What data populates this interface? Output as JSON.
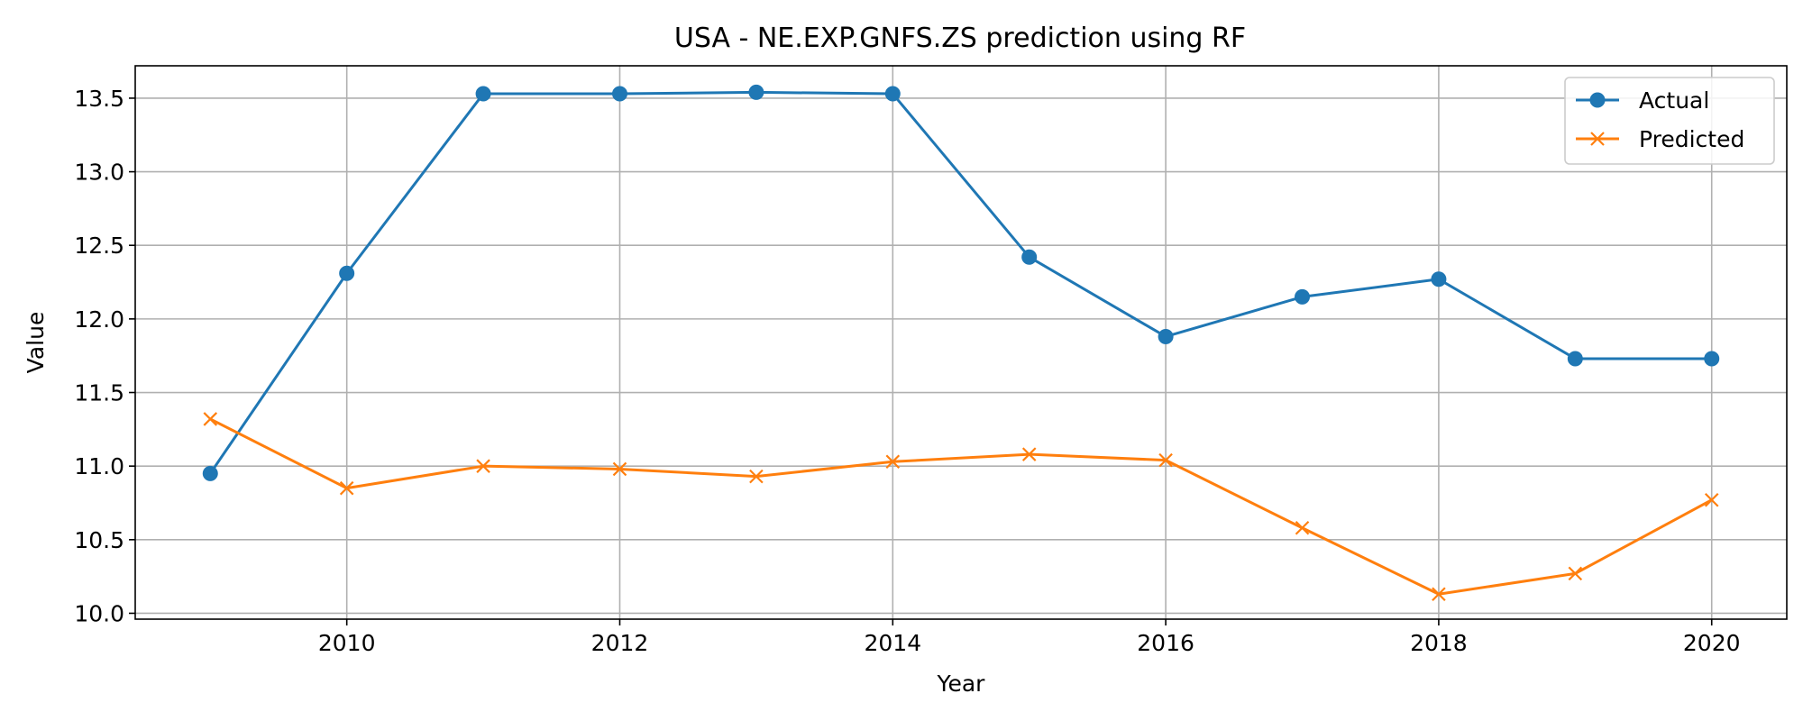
{
  "chart_data": {
    "type": "line",
    "title": "USA - NE.EXP.GNFS.ZS prediction using RF",
    "xlabel": "Year",
    "ylabel": "Value",
    "x": [
      2009,
      2010,
      2011,
      2012,
      2013,
      2014,
      2015,
      2016,
      2017,
      2018,
      2019,
      2020
    ],
    "xlim": [
      2008.45,
      2020.55
    ],
    "ylim": [
      9.96,
      13.72
    ],
    "xticks": [
      2010,
      2012,
      2014,
      2016,
      2018,
      2020
    ],
    "yticks": [
      10.0,
      10.5,
      11.0,
      11.5,
      12.0,
      12.5,
      13.0,
      13.5
    ],
    "grid": true,
    "legend_position": "top-right",
    "series": [
      {
        "name": "Actual",
        "color": "#1f77b4",
        "marker": "circle",
        "values": [
          10.95,
          12.31,
          13.53,
          13.53,
          13.54,
          13.53,
          12.42,
          11.88,
          12.15,
          12.27,
          11.73,
          11.73
        ]
      },
      {
        "name": "Predicted",
        "color": "#ff7f0e",
        "marker": "x",
        "values": [
          11.32,
          10.85,
          11.0,
          10.98,
          10.93,
          11.03,
          11.08,
          11.04,
          10.58,
          10.13,
          10.27,
          10.77
        ]
      }
    ]
  }
}
